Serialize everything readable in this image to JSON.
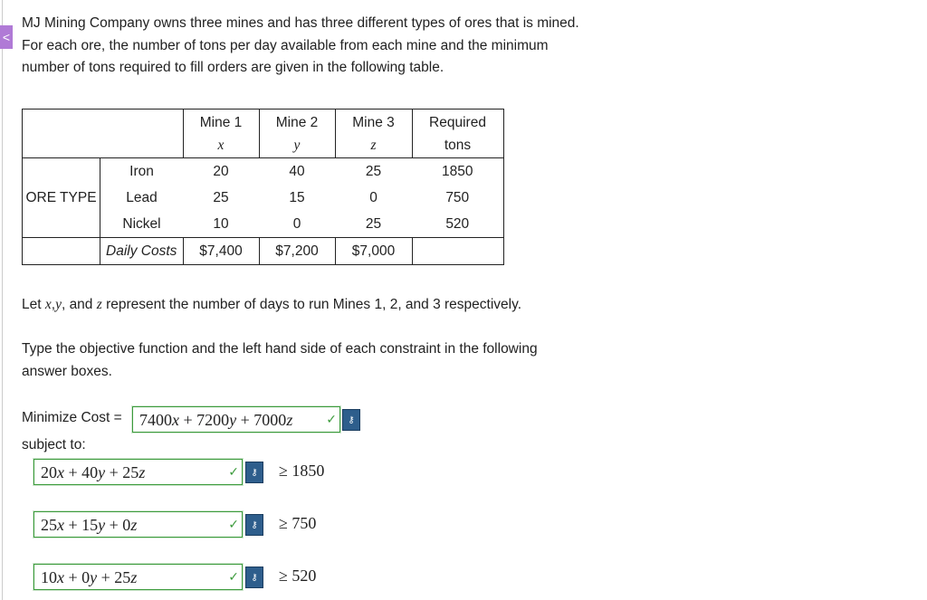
{
  "intro": "MJ Mining Company owns three mines and has three different types of ores that is mined. For each ore, the number of tons per day available from each mine and the minimum number of tons required to fill orders are given in the following table.",
  "table": {
    "header": [
      {
        "title": "Mine 1",
        "variable": "x"
      },
      {
        "title": "Mine 2",
        "variable": "y"
      },
      {
        "title": "Mine 3",
        "variable": "z"
      },
      {
        "title": "Required",
        "variable": "tons"
      }
    ],
    "group_label": "ORE TYPE",
    "rows": [
      [
        "Iron",
        20,
        40,
        25,
        1850
      ],
      [
        "Lead",
        25,
        15,
        0,
        750
      ],
      [
        "Nickel",
        10,
        0,
        25,
        520
      ]
    ],
    "cost_label": "Daily Costs",
    "costs": [
      "$7,400",
      "$7,200",
      "$7,000"
    ]
  },
  "variables_text": [
    "Let ",
    "x",
    ",",
    "y",
    ", and ",
    "z",
    " represent the number of days to run Mines 1, 2, and 3 respectively."
  ],
  "instruction": "Type the objective function and the left hand side of each constraint in the following answer boxes.",
  "objective": {
    "label": "Minimize Cost =",
    "answer": "7400x + 7200y + 7000z"
  },
  "subject_to": "subject to:",
  "constraints": [
    {
      "answer": "20x + 40y + 25z",
      "relation": "≥ 1850"
    },
    {
      "answer": "25x + 15y + 0z",
      "relation": "≥ 750"
    },
    {
      "answer": "10x + 0y + 25z",
      "relation": "≥ 520"
    }
  ]
}
